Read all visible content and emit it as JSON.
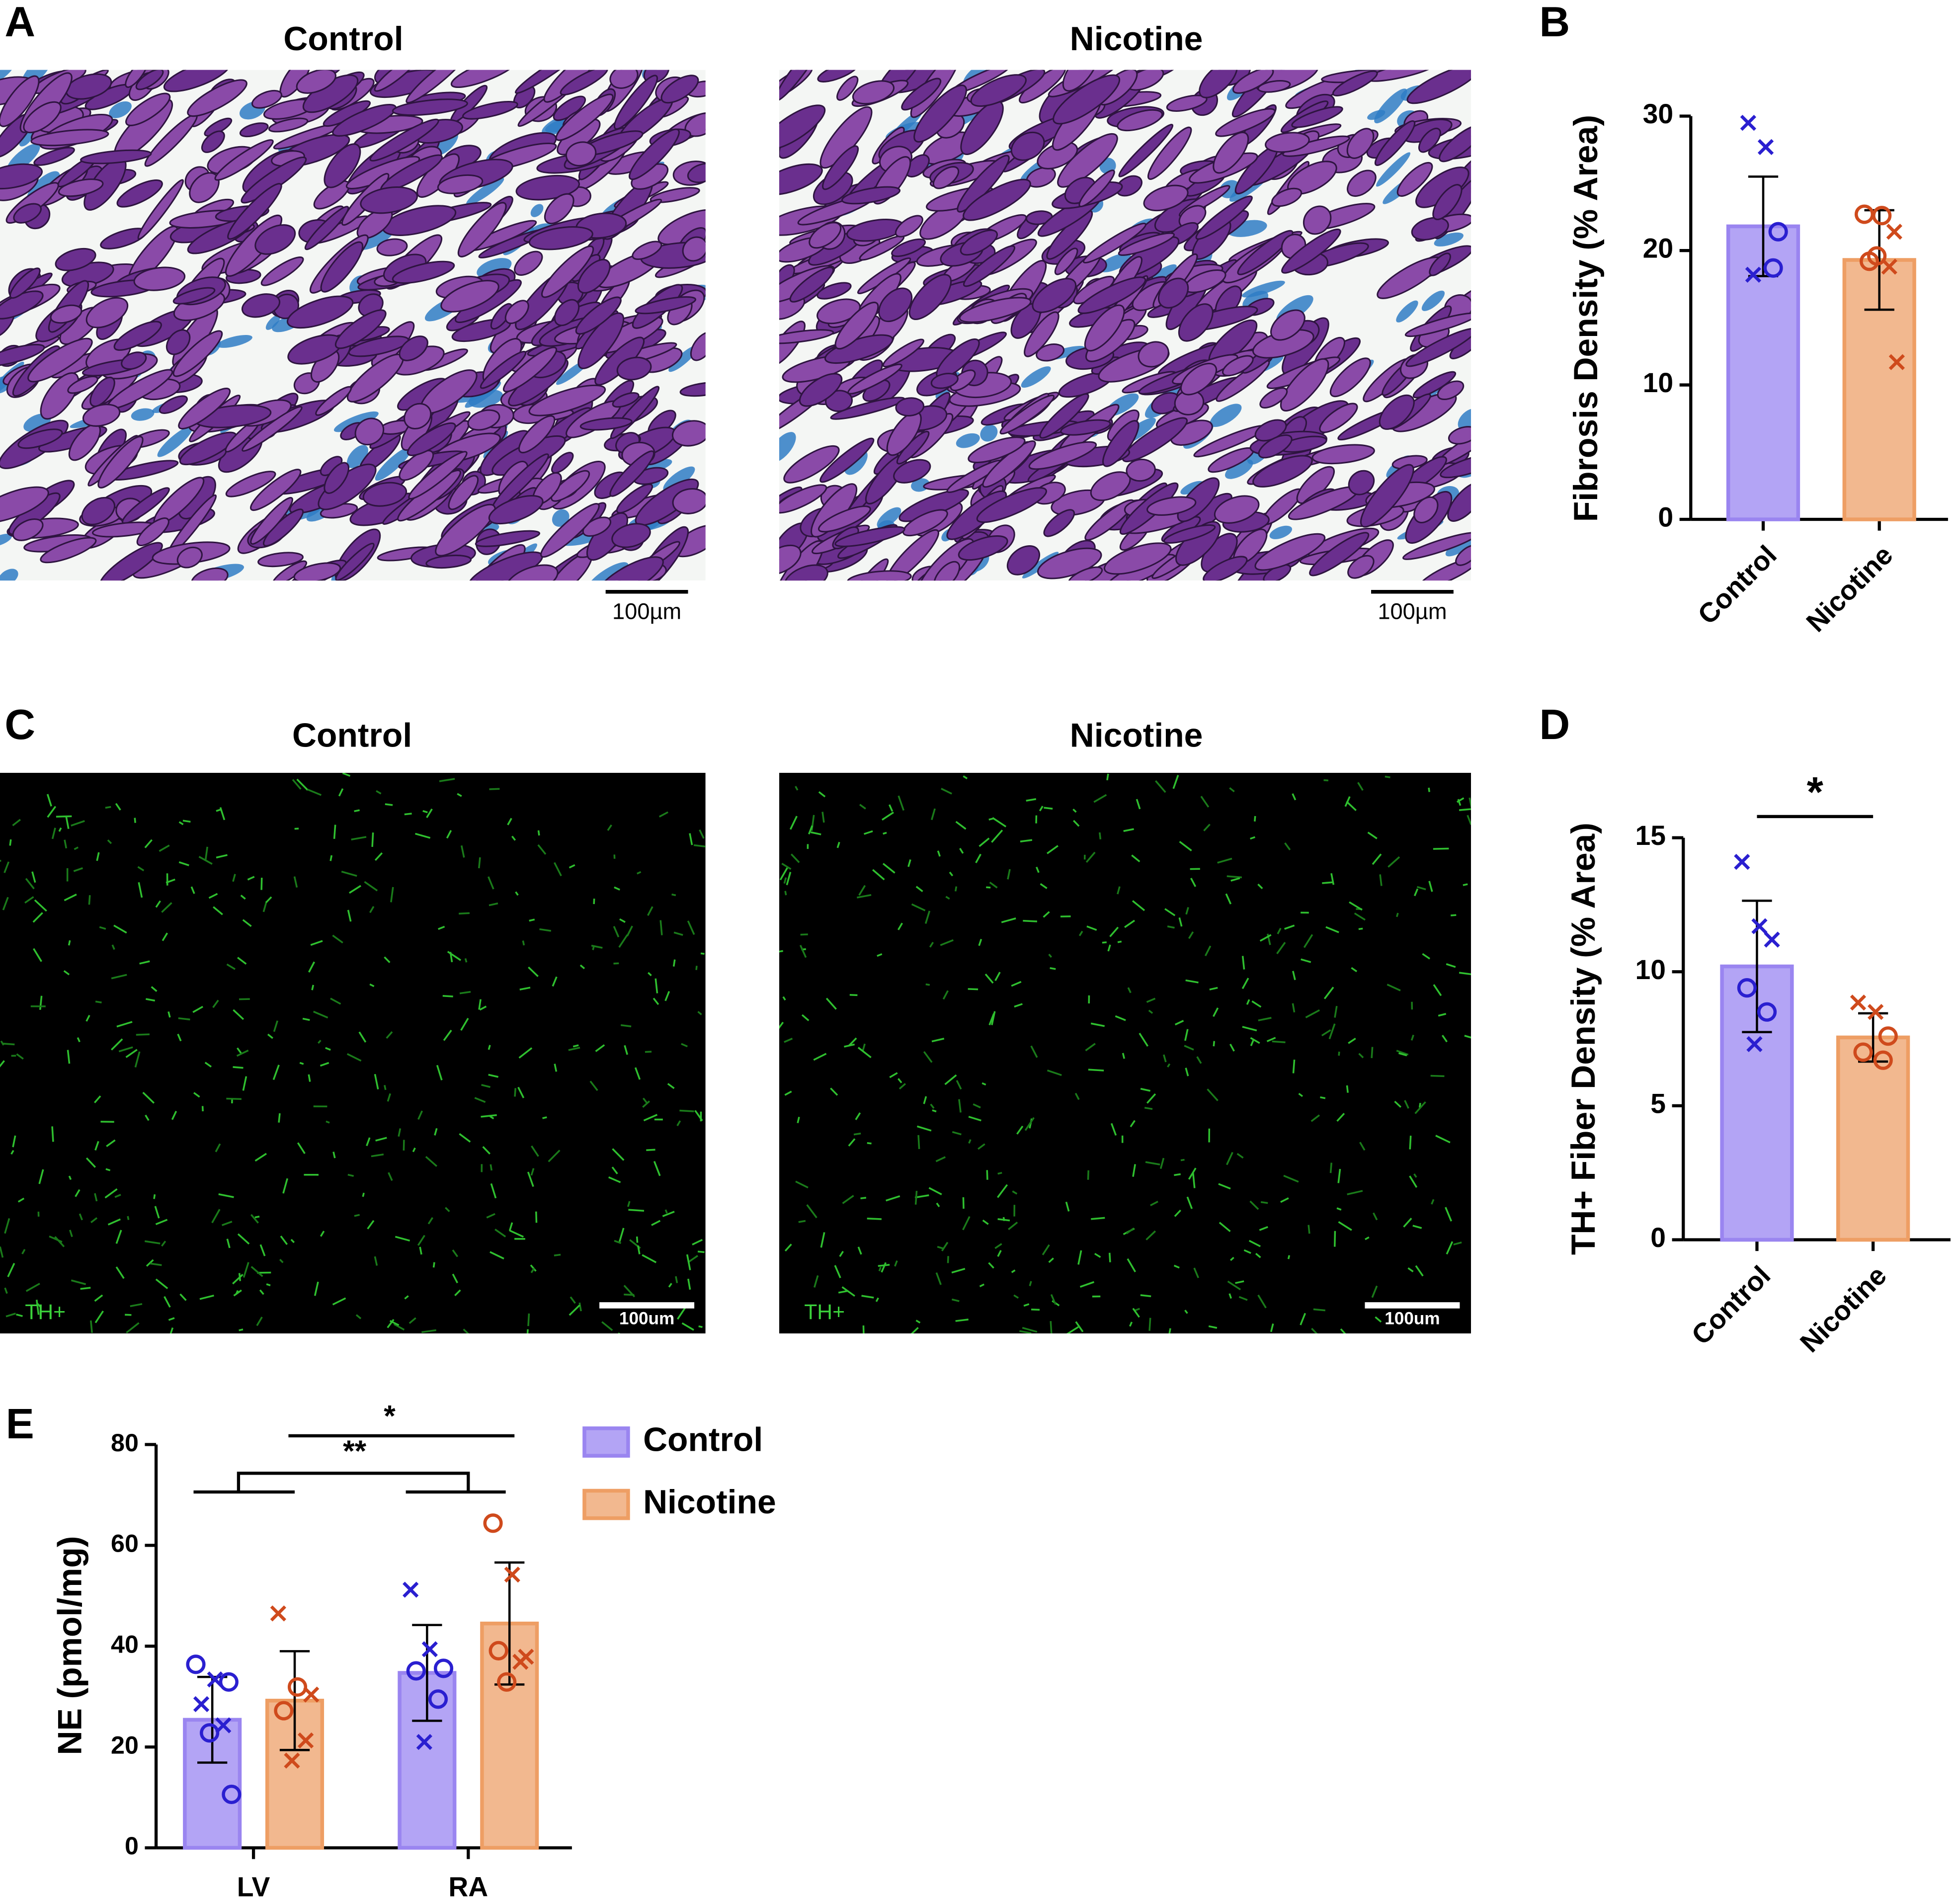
{
  "figure": {
    "panel_labels": [
      "A",
      "B",
      "C",
      "D",
      "E"
    ],
    "images": [
      {
        "title": "Control",
        "scale_label": "100µm"
      },
      {
        "title": "Nicotine",
        "scale_label": "100µm"
      },
      {
        "title": "Control",
        "scale_label": "100um",
        "stain_label": "TH+"
      },
      {
        "title": "Nicotine",
        "scale_label": "100um",
        "stain_label": "TH+"
      }
    ]
  },
  "chart_data": [
    {
      "type": "bar",
      "ylabel": "Fibrosis Density (% Area)",
      "categories": [
        "Control",
        "Nicotine"
      ],
      "values": [
        21.8,
        19.3
      ],
      "errors": [
        3.7,
        3.7
      ],
      "colors": [
        "#b3a4f5",
        "#f2b88f"
      ],
      "edge_colors": [
        "#9a85f0",
        "#ee9e64"
      ],
      "point_colors": [
        "#2a1fd0",
        "#cf4a1c"
      ],
      "points": [
        [
          29.5,
          27.7,
          21.4,
          18.2,
          18.7
        ],
        [
          22.7,
          22.6,
          21.4,
          19.2,
          18.8,
          19.6,
          11.7
        ]
      ],
      "markers": [
        [
          "x",
          "x",
          "o",
          "x",
          "o"
        ],
        [
          "o",
          "o",
          "x",
          "o",
          "x",
          "o",
          "x"
        ]
      ],
      "ylim": [
        0,
        30
      ],
      "yticks": [
        0,
        10,
        20,
        30
      ]
    },
    {
      "type": "bar",
      "ylabel": "TH+ Fiber Density (% Area)",
      "categories": [
        "Control",
        "Nicotine"
      ],
      "values": [
        10.2,
        7.55
      ],
      "errors": [
        2.45,
        0.9
      ],
      "colors": [
        "#b3a4f5",
        "#f2b88f"
      ],
      "edge_colors": [
        "#9a85f0",
        "#ee9e64"
      ],
      "point_colors": [
        "#2a1fd0",
        "#cf4a1c"
      ],
      "points": [
        [
          14.1,
          11.7,
          11.2,
          9.4,
          8.5,
          7.3
        ],
        [
          8.85,
          8.5,
          7.6,
          7.0,
          6.7
        ]
      ],
      "markers": [
        [
          "x",
          "x",
          "x",
          "o",
          "o",
          "x"
        ],
        [
          "x",
          "x",
          "o",
          "o",
          "o"
        ]
      ],
      "annotations": [
        "*"
      ],
      "ylim": [
        0,
        15
      ],
      "yticks": [
        0,
        5,
        10,
        15
      ]
    },
    {
      "type": "grouped_bar",
      "ylabel": "NE (pmol/mg)",
      "categories": [
        "LV",
        "RA"
      ],
      "series": [
        {
          "name": "Control",
          "color": "#b3a4f5",
          "edge_color": "#9a85f0",
          "point_color": "#2a1fd0",
          "values": [
            25.4,
            34.7
          ],
          "errors": [
            8.5,
            9.5
          ],
          "points": [
            [
              36.4,
              33.4,
              32.9,
              28.5,
              24.3,
              22.8,
              10.6
            ],
            [
              51.2,
              39.4,
              35.6,
              35.1,
              29.5,
              21.0
            ]
          ],
          "markers": [
            [
              "o",
              "x",
              "o",
              "x",
              "x",
              "o",
              "o"
            ],
            [
              "x",
              "x",
              "o",
              "o",
              "o",
              "x"
            ]
          ]
        },
        {
          "name": "Nicotine",
          "color": "#f2b88f",
          "edge_color": "#ee9e64",
          "point_color": "#cf4a1c",
          "values": [
            29.2,
            44.5
          ],
          "errors": [
            9.8,
            12.1
          ],
          "points": [
            [
              46.5,
              31.9,
              30.4,
              27.2,
              21.3,
              17.3
            ],
            [
              64.4,
              54.2,
              37.9,
              39.1,
              36.9,
              32.9
            ]
          ],
          "markers": [
            [
              "x",
              "o",
              "x",
              "o",
              "x",
              "x"
            ],
            [
              "o",
              "x",
              "x",
              "o",
              "x",
              "o"
            ]
          ]
        }
      ],
      "annotations": [
        "*",
        "**"
      ],
      "ylim": [
        0,
        80
      ],
      "yticks": [
        0,
        20,
        40,
        60,
        80
      ]
    }
  ]
}
